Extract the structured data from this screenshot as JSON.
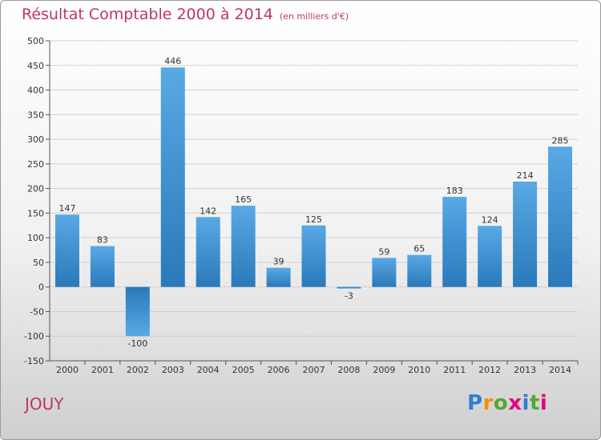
{
  "title": "Résultat Comptable 2000 à 2014",
  "unit": "(en milliers d'€)",
  "commune": "JOUY",
  "logo": {
    "letters": [
      "P",
      "r",
      "o",
      "x",
      "i",
      "t",
      "i"
    ],
    "colors": [
      "#2e7fd0",
      "#f39200",
      "#5aa532",
      "#e5007e",
      "#2e7fd0",
      "#5aa532",
      "#e5007e"
    ]
  },
  "colors": {
    "bar_light": "#58a9e4",
    "bar_dark": "#2a79bb",
    "title": "#c0346a",
    "grid": "#cfcfcf"
  },
  "chart_data": {
    "type": "bar",
    "title": "Résultat Comptable 2000 à 2014",
    "xlabel": "",
    "ylabel": "(en milliers d'€)",
    "categories": [
      "2000",
      "2001",
      "2002",
      "2003",
      "2004",
      "2005",
      "2006",
      "2007",
      "2008",
      "2009",
      "2010",
      "2011",
      "2012",
      "2013",
      "2014"
    ],
    "values": [
      147,
      83,
      -100,
      446,
      142,
      165,
      39,
      125,
      -3,
      59,
      65,
      183,
      124,
      214,
      285
    ],
    "ylim": [
      -150,
      500
    ],
    "yticks": [
      500,
      450,
      400,
      350,
      300,
      250,
      200,
      150,
      100,
      50,
      0,
      -50,
      -100,
      -150
    ],
    "ytick_labels": [
      "500",
      "450",
      "400",
      "350",
      "300",
      "250",
      "200",
      "150",
      "100",
      "50",
      "0",
      "-50",
      "-100",
      "-150"
    ],
    "value_labels": [
      "147",
      "83",
      "-100",
      "446",
      "142",
      "165",
      "39",
      "125",
      "-3",
      "59",
      "65",
      "183",
      "124",
      "214",
      "285"
    ],
    "grid": true
  }
}
